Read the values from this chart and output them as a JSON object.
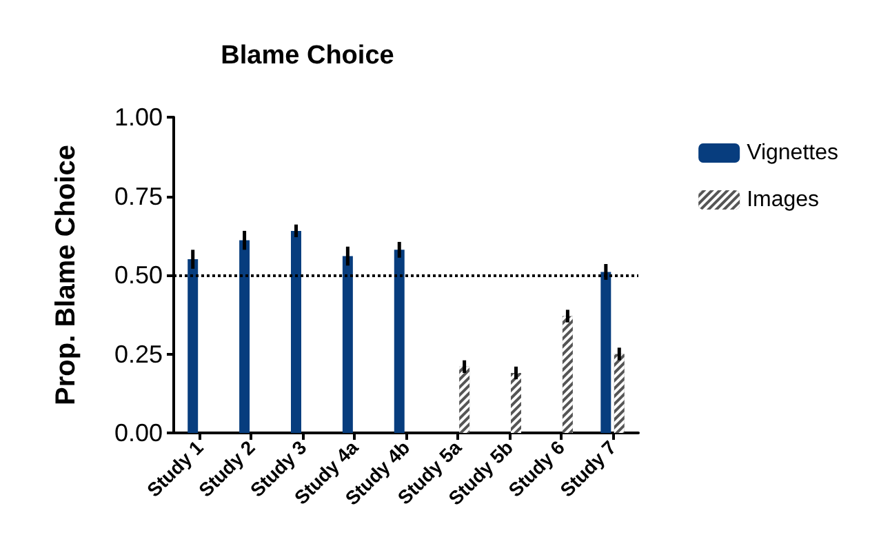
{
  "chart_data": {
    "type": "bar",
    "title": "Blame Choice",
    "ylabel": "Prop. Blame Choice",
    "categories": [
      "Study 1",
      "Study 2",
      "Study 3",
      "Study 4a",
      "Study 4b",
      "Study 5a",
      "Study 5b",
      "Study 6",
      "Study 7"
    ],
    "series": [
      {
        "name": "Vignettes",
        "color": "#073d7e",
        "values": [
          0.55,
          0.61,
          0.64,
          0.56,
          0.58,
          null,
          null,
          null,
          0.51
        ],
        "errors": [
          0.03,
          0.03,
          0.02,
          0.03,
          0.025,
          null,
          null,
          null,
          0.025
        ]
      },
      {
        "name": "Images",
        "color": "#555555",
        "values": [
          null,
          null,
          null,
          null,
          null,
          0.21,
          0.19,
          0.37,
          0.25
        ],
        "errors": [
          null,
          null,
          null,
          null,
          null,
          0.02,
          0.02,
          0.02,
          0.02
        ]
      }
    ],
    "ylim": [
      0,
      1
    ],
    "yticks": [
      {
        "value": 0,
        "label": "0.00"
      },
      {
        "value": 0.25,
        "label": "0.25"
      },
      {
        "value": 0.5,
        "label": "0.50"
      },
      {
        "value": 0.75,
        "label": "0.75"
      },
      {
        "value": 1,
        "label": "1.00"
      }
    ],
    "ref_lines": [
      {
        "axis": "y",
        "value": 0.5,
        "label": null,
        "color": "#000000",
        "line_style": "dotted"
      }
    ],
    "grid": false,
    "legend": "top right"
  }
}
